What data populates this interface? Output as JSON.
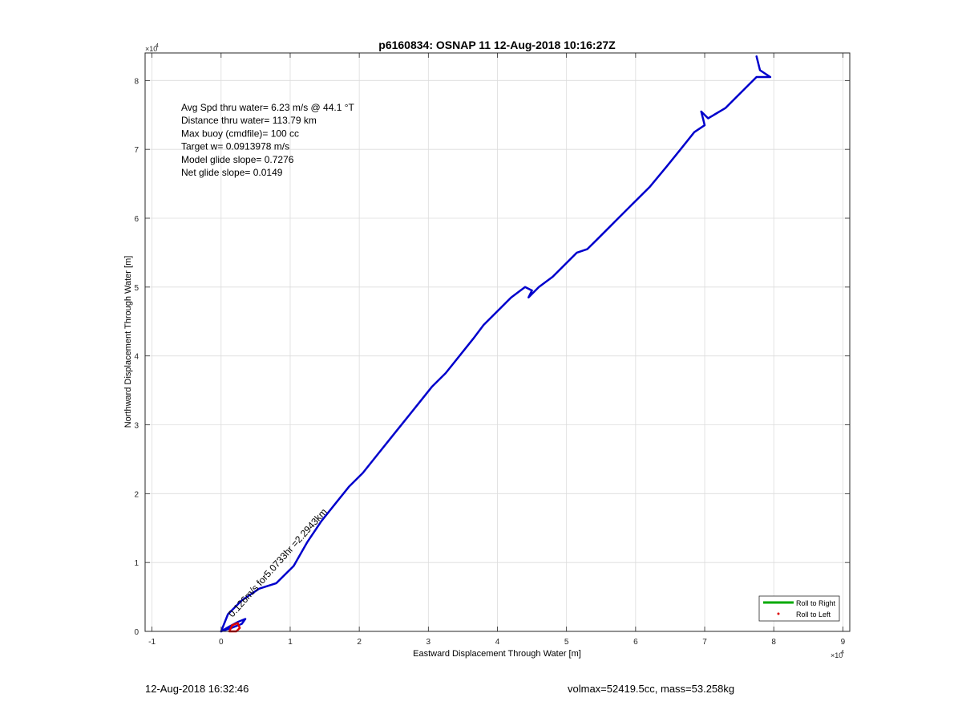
{
  "chart_data": {
    "type": "line",
    "title": "p6160834: OSNAP 11 12-Aug-2018 10:16:27Z",
    "xlabel": "Eastward Displacement Through Water [m]",
    "ylabel": "Northward Displacement Through Water [m]",
    "xlim": [
      -11000,
      91000
    ],
    "ylim": [
      0,
      84000
    ],
    "x_ticks": [
      -1,
      0,
      1,
      2,
      3,
      4,
      5,
      6,
      7,
      8,
      9
    ],
    "y_ticks": [
      0,
      1,
      2,
      3,
      4,
      5,
      6,
      7,
      8
    ],
    "x_exponent_label": "×10",
    "x_exponent": "4",
    "y_exponent_label": "×10",
    "y_exponent": "4",
    "grid": true,
    "line_color": "#0000cc",
    "annotations": [
      "Avg Spd thru water=  6.23 m/s @  44.1 °T",
      "Distance thru water= 113.79 km",
      "Max buoy (cmdfile)= 100 cc",
      "Target w= 0.0913978 m/s",
      "Model glide slope= 0.7276",
      "Net glide slope= 0.0149"
    ],
    "rotated_label": "0.126m/s for5.0733hr =2.2943km",
    "legend": {
      "position": "bottom-right",
      "entries": [
        {
          "label": "Roll to Right",
          "color": "#00aa00",
          "marker": "line"
        },
        {
          "label": "Roll to Left",
          "color": "#dd0000",
          "marker": "dot"
        }
      ]
    },
    "series": [
      {
        "name": "track",
        "color": "#0000cc",
        "x": [
          0,
          1000,
          3000,
          5500,
          8000,
          10500,
          12500,
          14500,
          16500,
          18500,
          20500,
          22500,
          24500,
          26500,
          28500,
          30500,
          32500,
          34500,
          36500,
          38000,
          40000,
          42000,
          44000,
          45000,
          44500,
          46000,
          48000,
          50000,
          51500,
          53000,
          54500,
          57000,
          59500,
          62000,
          64500,
          66500,
          68500,
          70000,
          69500,
          70500,
          73000,
          75500,
          77500,
          79500,
          78000,
          77500
        ],
        "y": [
          0,
          2500,
          4500,
          6200,
          7000,
          9500,
          13000,
          16000,
          18500,
          21000,
          23000,
          25500,
          28000,
          30500,
          33000,
          35500,
          37500,
          40000,
          42500,
          44500,
          46500,
          48500,
          50000,
          49500,
          48500,
          50000,
          51500,
          53500,
          55000,
          55500,
          57000,
          59500,
          62000,
          64500,
          67500,
          70000,
          72500,
          73500,
          75500,
          74500,
          76000,
          78500,
          80500,
          80500,
          81500,
          83500
        ]
      },
      {
        "name": "initial-loop",
        "color": "#0000cc",
        "x": [
          0,
          1500,
          3000,
          3500,
          2500,
          1200,
          0
        ],
        "y": [
          0,
          500,
          1100,
          1800,
          1400,
          700,
          0
        ]
      },
      {
        "name": "roll-left-loop",
        "color": "#dd0000",
        "x": [
          1200,
          2200,
          2700,
          2400,
          1600,
          1200
        ],
        "y": [
          0,
          0,
          500,
          1200,
          900,
          0
        ]
      }
    ]
  },
  "footer": {
    "timestamp": "12-Aug-2018 16:32:46",
    "params": "volmax=52419.5cc, mass=53.258kg"
  }
}
